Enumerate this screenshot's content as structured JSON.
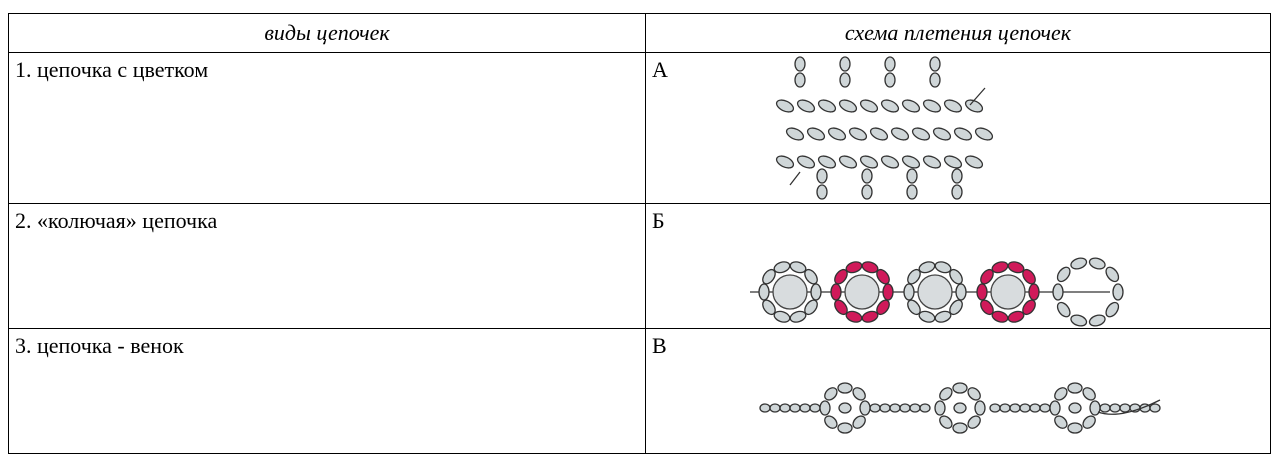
{
  "table": {
    "header": [
      "виды цепочек",
      "схема плетения цепочек"
    ],
    "rows": [
      [
        "1. цепочка с цветком",
        "А"
      ],
      [
        "2. «колючая» цепочка",
        "Б"
      ],
      [
        "3. цепочка - венок",
        "В"
      ]
    ]
  }
}
